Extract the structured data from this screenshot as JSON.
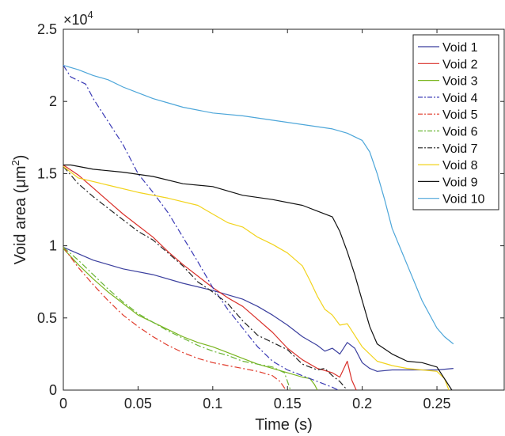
{
  "chart_data": {
    "type": "line",
    "xlabel": "Time (s)",
    "ylabel": "Void area (μm²)",
    "ylabel_main": "Void area (μm",
    "ylabel_sup": "2",
    "ylabel_close": ")",
    "exponent_prefix": "×10",
    "exponent_power": "4",
    "xlim": [
      0,
      0.295
    ],
    "ylim": [
      0,
      25000
    ],
    "xticks": [
      0,
      0.05,
      0.1,
      0.15,
      0.2,
      0.25
    ],
    "xtick_labels": [
      "0",
      "0.05",
      "0.1",
      "0.15",
      "0.2",
      "0.25"
    ],
    "yticks": [
      0,
      5000,
      10000,
      15000,
      20000,
      25000
    ],
    "ytick_labels": [
      "0",
      "0.5",
      "1",
      "1.5",
      "2",
      "2.5"
    ],
    "grid": false,
    "legend_position": "top-right",
    "series": [
      {
        "name": "Void 1",
        "color": "#3b3f9e",
        "dash": "solid",
        "points": [
          [
            0,
            9900
          ],
          [
            0.02,
            9000
          ],
          [
            0.04,
            8400
          ],
          [
            0.06,
            8000
          ],
          [
            0.08,
            7400
          ],
          [
            0.1,
            6900
          ],
          [
            0.12,
            6300
          ],
          [
            0.13,
            5800
          ],
          [
            0.14,
            5200
          ],
          [
            0.15,
            4500
          ],
          [
            0.16,
            3700
          ],
          [
            0.17,
            3100
          ],
          [
            0.175,
            2700
          ],
          [
            0.18,
            2900
          ],
          [
            0.185,
            2500
          ],
          [
            0.19,
            3300
          ],
          [
            0.195,
            2900
          ],
          [
            0.2,
            1900
          ],
          [
            0.205,
            1500
          ],
          [
            0.21,
            1300
          ],
          [
            0.22,
            1400
          ],
          [
            0.24,
            1400
          ],
          [
            0.25,
            1400
          ],
          [
            0.261,
            1500
          ]
        ]
      },
      {
        "name": "Void 2",
        "color": "#d9302a",
        "dash": "solid",
        "points": [
          [
            0,
            15600
          ],
          [
            0.01,
            14900
          ],
          [
            0.02,
            14000
          ],
          [
            0.03,
            13100
          ],
          [
            0.04,
            12200
          ],
          [
            0.05,
            11400
          ],
          [
            0.06,
            10600
          ],
          [
            0.07,
            9600
          ],
          [
            0.08,
            8700
          ],
          [
            0.09,
            7900
          ],
          [
            0.1,
            7100
          ],
          [
            0.11,
            6400
          ],
          [
            0.12,
            5800
          ],
          [
            0.13,
            4900
          ],
          [
            0.14,
            4000
          ],
          [
            0.15,
            2900
          ],
          [
            0.16,
            2100
          ],
          [
            0.17,
            1500
          ],
          [
            0.18,
            1200
          ],
          [
            0.185,
            900
          ],
          [
            0.19,
            2000
          ],
          [
            0.193,
            700
          ],
          [
            0.196,
            0
          ]
        ]
      },
      {
        "name": "Void 3",
        "color": "#79b51e",
        "dash": "solid",
        "points": [
          [
            0,
            9800
          ],
          [
            0.01,
            8700
          ],
          [
            0.02,
            7700
          ],
          [
            0.03,
            6800
          ],
          [
            0.04,
            6000
          ],
          [
            0.05,
            5200
          ],
          [
            0.06,
            4700
          ],
          [
            0.07,
            4200
          ],
          [
            0.08,
            3700
          ],
          [
            0.09,
            3300
          ],
          [
            0.1,
            3000
          ],
          [
            0.11,
            2600
          ],
          [
            0.12,
            2200
          ],
          [
            0.13,
            1800
          ],
          [
            0.14,
            1500
          ],
          [
            0.15,
            1200
          ],
          [
            0.16,
            900
          ],
          [
            0.165,
            800
          ],
          [
            0.168,
            400
          ],
          [
            0.17,
            0
          ]
        ]
      },
      {
        "name": "Void 4",
        "color": "#3a3ab5",
        "dash": "dashdot",
        "points": [
          [
            0,
            22500
          ],
          [
            0.005,
            21700
          ],
          [
            0.015,
            21200
          ],
          [
            0.02,
            20200
          ],
          [
            0.03,
            18600
          ],
          [
            0.04,
            17000
          ],
          [
            0.05,
            15000
          ],
          [
            0.06,
            13700
          ],
          [
            0.07,
            12300
          ],
          [
            0.08,
            10600
          ],
          [
            0.09,
            8900
          ],
          [
            0.1,
            7100
          ],
          [
            0.11,
            5600
          ],
          [
            0.12,
            4300
          ],
          [
            0.13,
            3000
          ],
          [
            0.14,
            2000
          ],
          [
            0.15,
            1400
          ],
          [
            0.16,
            1000
          ],
          [
            0.17,
            600
          ],
          [
            0.175,
            400
          ],
          [
            0.18,
            200
          ],
          [
            0.184,
            0
          ]
        ]
      },
      {
        "name": "Void 5",
        "color": "#e03a2a",
        "dash": "dashdot",
        "points": [
          [
            0,
            9900
          ],
          [
            0.01,
            8500
          ],
          [
            0.02,
            7300
          ],
          [
            0.03,
            6200
          ],
          [
            0.04,
            5200
          ],
          [
            0.05,
            4400
          ],
          [
            0.06,
            3700
          ],
          [
            0.07,
            3100
          ],
          [
            0.08,
            2600
          ],
          [
            0.09,
            2200
          ],
          [
            0.1,
            1900
          ],
          [
            0.11,
            1700
          ],
          [
            0.12,
            1500
          ],
          [
            0.13,
            1300
          ],
          [
            0.14,
            1000
          ],
          [
            0.145,
            600
          ],
          [
            0.149,
            0
          ]
        ]
      },
      {
        "name": "Void 6",
        "color": "#6ab535",
        "dash": "dashdot",
        "points": [
          [
            0,
            9900
          ],
          [
            0.01,
            9000
          ],
          [
            0.02,
            8000
          ],
          [
            0.03,
            7000
          ],
          [
            0.04,
            6100
          ],
          [
            0.05,
            5300
          ],
          [
            0.06,
            4700
          ],
          [
            0.07,
            4100
          ],
          [
            0.08,
            3600
          ],
          [
            0.09,
            3100
          ],
          [
            0.1,
            2700
          ],
          [
            0.11,
            2400
          ],
          [
            0.12,
            2000
          ],
          [
            0.13,
            1800
          ],
          [
            0.14,
            1600
          ],
          [
            0.148,
            1200
          ],
          [
            0.152,
            0
          ]
        ]
      },
      {
        "name": "Void 7",
        "color": "#222222",
        "dash": "dashdot",
        "points": [
          [
            0,
            15500
          ],
          [
            0.01,
            14300
          ],
          [
            0.02,
            13400
          ],
          [
            0.03,
            12600
          ],
          [
            0.04,
            11800
          ],
          [
            0.05,
            11000
          ],
          [
            0.06,
            10400
          ],
          [
            0.07,
            9500
          ],
          [
            0.08,
            8600
          ],
          [
            0.09,
            7500
          ],
          [
            0.1,
            6800
          ],
          [
            0.11,
            6000
          ],
          [
            0.12,
            4800
          ],
          [
            0.13,
            3800
          ],
          [
            0.14,
            3300
          ],
          [
            0.15,
            2800
          ],
          [
            0.16,
            1800
          ],
          [
            0.17,
            1400
          ],
          [
            0.175,
            1500
          ],
          [
            0.18,
            1000
          ],
          [
            0.185,
            600
          ],
          [
            0.19,
            0
          ]
        ]
      },
      {
        "name": "Void 8",
        "color": "#f2d31c",
        "dash": "solid",
        "points": [
          [
            0,
            15500
          ],
          [
            0.01,
            14700
          ],
          [
            0.03,
            14200
          ],
          [
            0.05,
            13700
          ],
          [
            0.07,
            13300
          ],
          [
            0.09,
            12800
          ],
          [
            0.1,
            12200
          ],
          [
            0.11,
            11600
          ],
          [
            0.12,
            11300
          ],
          [
            0.13,
            10600
          ],
          [
            0.14,
            10100
          ],
          [
            0.15,
            9500
          ],
          [
            0.16,
            8600
          ],
          [
            0.165,
            7600
          ],
          [
            0.17,
            6500
          ],
          [
            0.175,
            5600
          ],
          [
            0.18,
            5200
          ],
          [
            0.185,
            4500
          ],
          [
            0.19,
            4600
          ],
          [
            0.2,
            3000
          ],
          [
            0.21,
            2000
          ],
          [
            0.22,
            1700
          ],
          [
            0.23,
            1500
          ],
          [
            0.24,
            1400
          ],
          [
            0.25,
            1300
          ],
          [
            0.255,
            800
          ],
          [
            0.258,
            0
          ]
        ]
      },
      {
        "name": "Void 9",
        "color": "#111111",
        "dash": "solid",
        "points": [
          [
            0,
            15600
          ],
          [
            0.005,
            15600
          ],
          [
            0.02,
            15300
          ],
          [
            0.04,
            15100
          ],
          [
            0.06,
            14800
          ],
          [
            0.08,
            14300
          ],
          [
            0.1,
            14100
          ],
          [
            0.12,
            13500
          ],
          [
            0.14,
            13200
          ],
          [
            0.16,
            12800
          ],
          [
            0.17,
            12400
          ],
          [
            0.18,
            12000
          ],
          [
            0.185,
            11000
          ],
          [
            0.19,
            9600
          ],
          [
            0.195,
            8000
          ],
          [
            0.2,
            6200
          ],
          [
            0.205,
            4400
          ],
          [
            0.21,
            3200
          ],
          [
            0.22,
            2500
          ],
          [
            0.23,
            2000
          ],
          [
            0.24,
            1900
          ],
          [
            0.25,
            1600
          ],
          [
            0.26,
            0
          ]
        ]
      },
      {
        "name": "Void 10",
        "color": "#4da6d9",
        "dash": "solid",
        "points": [
          [
            0,
            22500
          ],
          [
            0.01,
            22200
          ],
          [
            0.02,
            21800
          ],
          [
            0.03,
            21500
          ],
          [
            0.04,
            21000
          ],
          [
            0.05,
            20600
          ],
          [
            0.06,
            20200
          ],
          [
            0.07,
            19900
          ],
          [
            0.08,
            19600
          ],
          [
            0.1,
            19200
          ],
          [
            0.12,
            19000
          ],
          [
            0.14,
            18700
          ],
          [
            0.16,
            18400
          ],
          [
            0.18,
            18100
          ],
          [
            0.19,
            17800
          ],
          [
            0.2,
            17300
          ],
          [
            0.205,
            16500
          ],
          [
            0.21,
            15000
          ],
          [
            0.215,
            13200
          ],
          [
            0.22,
            11200
          ],
          [
            0.23,
            8700
          ],
          [
            0.24,
            6200
          ],
          [
            0.25,
            4300
          ],
          [
            0.255,
            3700
          ],
          [
            0.261,
            3200
          ]
        ]
      }
    ]
  }
}
